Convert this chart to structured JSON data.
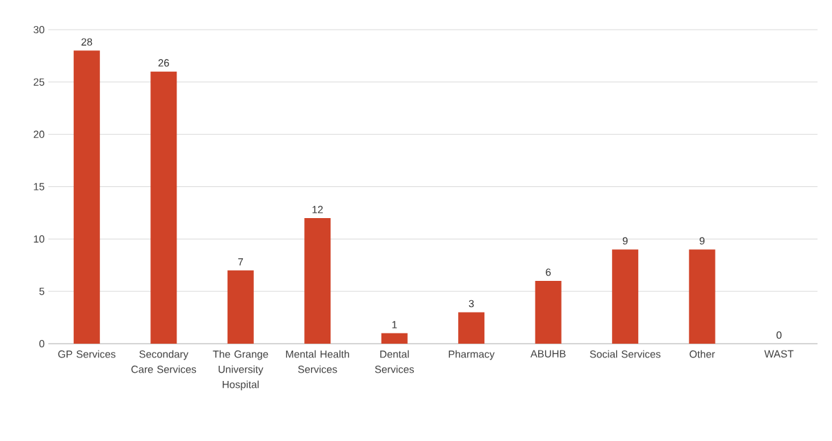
{
  "chart_data": {
    "type": "bar",
    "categories": [
      "GP Services",
      "Secondary Care Services",
      "The Grange University Hospital",
      "Mental Health Services",
      "Dental Services",
      "Pharmacy",
      "ABUHB",
      "Social Services",
      "Other",
      "WAST"
    ],
    "values": [
      28,
      26,
      7,
      12,
      1,
      3,
      6,
      9,
      9,
      0
    ],
    "color": "#d04328",
    "ylim": [
      0,
      30
    ],
    "yticks": [
      0,
      5,
      10,
      15,
      20,
      25,
      30
    ],
    "grid": "y",
    "data_labels": true
  }
}
